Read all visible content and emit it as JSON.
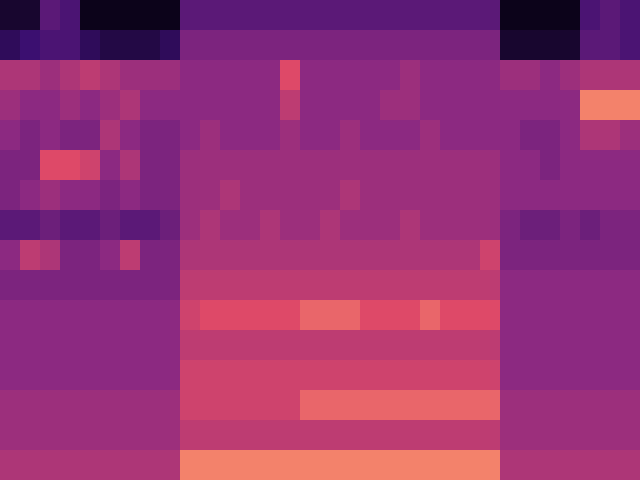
{
  "chart_data": {
    "type": "heatmap",
    "xlim": [
      0,
      32
    ],
    "ylim": [
      0,
      16
    ],
    "zlim": [
      0,
      1
    ],
    "tick_labels": false,
    "cells": [
      [
        0.1,
        0.1,
        0.35,
        0.3,
        0.05,
        0.05,
        0.05,
        0.05,
        0.05,
        0.35,
        0.35,
        0.35,
        0.35,
        0.35,
        0.35,
        0.35,
        0.35,
        0.35,
        0.35,
        0.35,
        0.35,
        0.35,
        0.35,
        0.35,
        0.35,
        0.05,
        0.05,
        0.05,
        0.05,
        0.3,
        0.35,
        0.3
      ],
      [
        0.2,
        0.25,
        0.3,
        0.3,
        0.2,
        0.15,
        0.15,
        0.15,
        0.2,
        0.45,
        0.45,
        0.45,
        0.45,
        0.45,
        0.45,
        0.45,
        0.45,
        0.45,
        0.45,
        0.45,
        0.45,
        0.45,
        0.45,
        0.45,
        0.45,
        0.1,
        0.1,
        0.1,
        0.1,
        0.35,
        0.35,
        0.3
      ],
      [
        0.6,
        0.6,
        0.55,
        0.6,
        0.65,
        0.6,
        0.55,
        0.55,
        0.55,
        0.5,
        0.5,
        0.5,
        0.5,
        0.5,
        0.75,
        0.5,
        0.5,
        0.5,
        0.5,
        0.5,
        0.55,
        0.5,
        0.5,
        0.5,
        0.5,
        0.55,
        0.55,
        0.5,
        0.55,
        0.6,
        0.6,
        0.6
      ],
      [
        0.55,
        0.5,
        0.5,
        0.55,
        0.5,
        0.55,
        0.6,
        0.5,
        0.5,
        0.5,
        0.5,
        0.5,
        0.5,
        0.5,
        0.65,
        0.5,
        0.5,
        0.5,
        0.5,
        0.55,
        0.55,
        0.5,
        0.5,
        0.5,
        0.5,
        0.5,
        0.5,
        0.5,
        0.5,
        0.85,
        0.85,
        0.85
      ],
      [
        0.5,
        0.45,
        0.5,
        0.45,
        0.45,
        0.6,
        0.5,
        0.45,
        0.45,
        0.5,
        0.55,
        0.5,
        0.5,
        0.5,
        0.55,
        0.5,
        0.5,
        0.55,
        0.5,
        0.5,
        0.5,
        0.55,
        0.5,
        0.5,
        0.5,
        0.5,
        0.45,
        0.45,
        0.5,
        0.6,
        0.6,
        0.55
      ],
      [
        0.45,
        0.45,
        0.75,
        0.75,
        0.7,
        0.5,
        0.6,
        0.45,
        0.45,
        0.55,
        0.55,
        0.55,
        0.55,
        0.55,
        0.55,
        0.55,
        0.55,
        0.55,
        0.55,
        0.55,
        0.55,
        0.55,
        0.55,
        0.55,
        0.55,
        0.5,
        0.5,
        0.45,
        0.5,
        0.5,
        0.5,
        0.5
      ],
      [
        0.45,
        0.5,
        0.55,
        0.5,
        0.5,
        0.45,
        0.5,
        0.45,
        0.45,
        0.55,
        0.55,
        0.6,
        0.55,
        0.55,
        0.55,
        0.55,
        0.55,
        0.6,
        0.55,
        0.55,
        0.55,
        0.55,
        0.55,
        0.55,
        0.55,
        0.5,
        0.5,
        0.5,
        0.5,
        0.5,
        0.5,
        0.5
      ],
      [
        0.35,
        0.35,
        0.4,
        0.35,
        0.35,
        0.4,
        0.35,
        0.35,
        0.4,
        0.55,
        0.6,
        0.55,
        0.55,
        0.6,
        0.55,
        0.55,
        0.6,
        0.55,
        0.55,
        0.55,
        0.6,
        0.55,
        0.55,
        0.55,
        0.55,
        0.45,
        0.4,
        0.4,
        0.45,
        0.4,
        0.45,
        0.45
      ],
      [
        0.5,
        0.65,
        0.6,
        0.45,
        0.45,
        0.5,
        0.65,
        0.45,
        0.45,
        0.6,
        0.6,
        0.6,
        0.6,
        0.6,
        0.6,
        0.6,
        0.6,
        0.6,
        0.6,
        0.6,
        0.6,
        0.6,
        0.6,
        0.6,
        0.7,
        0.45,
        0.45,
        0.45,
        0.45,
        0.45,
        0.45,
        0.45
      ],
      [
        0.45,
        0.45,
        0.45,
        0.45,
        0.45,
        0.45,
        0.45,
        0.45,
        0.45,
        0.65,
        0.65,
        0.65,
        0.65,
        0.65,
        0.65,
        0.65,
        0.65,
        0.65,
        0.65,
        0.65,
        0.65,
        0.65,
        0.65,
        0.65,
        0.65,
        0.5,
        0.5,
        0.5,
        0.5,
        0.5,
        0.5,
        0.5
      ],
      [
        0.5,
        0.5,
        0.5,
        0.5,
        0.5,
        0.5,
        0.5,
        0.5,
        0.5,
        0.7,
        0.75,
        0.75,
        0.75,
        0.75,
        0.75,
        0.8,
        0.8,
        0.8,
        0.75,
        0.75,
        0.75,
        0.8,
        0.75,
        0.75,
        0.75,
        0.5,
        0.5,
        0.5,
        0.5,
        0.5,
        0.5,
        0.5
      ],
      [
        0.5,
        0.5,
        0.5,
        0.5,
        0.5,
        0.5,
        0.5,
        0.5,
        0.5,
        0.65,
        0.65,
        0.65,
        0.65,
        0.65,
        0.65,
        0.65,
        0.65,
        0.65,
        0.65,
        0.65,
        0.65,
        0.65,
        0.65,
        0.65,
        0.65,
        0.5,
        0.5,
        0.5,
        0.5,
        0.5,
        0.5,
        0.5
      ],
      [
        0.5,
        0.5,
        0.5,
        0.5,
        0.5,
        0.5,
        0.5,
        0.5,
        0.5,
        0.7,
        0.7,
        0.7,
        0.7,
        0.7,
        0.7,
        0.7,
        0.7,
        0.7,
        0.7,
        0.7,
        0.7,
        0.7,
        0.7,
        0.7,
        0.7,
        0.5,
        0.5,
        0.5,
        0.5,
        0.5,
        0.5,
        0.5
      ],
      [
        0.55,
        0.55,
        0.55,
        0.55,
        0.55,
        0.55,
        0.55,
        0.55,
        0.55,
        0.7,
        0.7,
        0.7,
        0.7,
        0.7,
        0.7,
        0.8,
        0.8,
        0.8,
        0.8,
        0.8,
        0.8,
        0.8,
        0.8,
        0.8,
        0.8,
        0.55,
        0.55,
        0.55,
        0.55,
        0.55,
        0.55,
        0.55
      ],
      [
        0.55,
        0.55,
        0.55,
        0.55,
        0.55,
        0.55,
        0.55,
        0.55,
        0.55,
        0.65,
        0.65,
        0.65,
        0.65,
        0.65,
        0.65,
        0.65,
        0.65,
        0.65,
        0.65,
        0.65,
        0.65,
        0.65,
        0.65,
        0.65,
        0.65,
        0.55,
        0.55,
        0.55,
        0.55,
        0.55,
        0.55,
        0.55
      ],
      [
        0.6,
        0.6,
        0.6,
        0.6,
        0.6,
        0.6,
        0.6,
        0.6,
        0.6,
        0.85,
        0.85,
        0.85,
        0.85,
        0.85,
        0.85,
        0.85,
        0.85,
        0.85,
        0.85,
        0.85,
        0.85,
        0.85,
        0.85,
        0.85,
        0.85,
        0.6,
        0.6,
        0.6,
        0.6,
        0.6,
        0.6,
        0.6
      ]
    ]
  }
}
